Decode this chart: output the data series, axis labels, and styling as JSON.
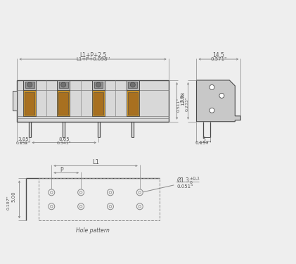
{
  "bg_color": "#eeeeee",
  "line_color": "#4a4a4a",
  "dim_color": "#888888",
  "text_color": "#555555",
  "body_fill": "#d8d8d8",
  "body_fill2": "#c0c0c0",
  "orange_color": "#c8922a",
  "orange_dark": "#a87020",
  "side_fill": "#c8c8c8",
  "top_dim_label1": "L1+P+2.5",
  "top_dim_label2": "L1+P+0.098''",
  "dim_59": "5.9",
  "dim_059": "0.233\"",
  "dim_385": "3.85",
  "dim_0152": "0.152\"",
  "dim_865": "8.65",
  "dim_0341": "0.341\"",
  "side_dim_145": "14.5",
  "side_dim_0571": "0.571\"",
  "side_dim_1298": "12.98",
  "side_dim_0511": "0.511\"",
  "side_dim_5": "5",
  "side_dim_0197": "0.197\"",
  "hole_L1": "L1",
  "hole_P": "P",
  "hole_500": "5.00",
  "hole_0197": "0.197\"",
  "hole_dia": "Ø1.3",
  "hole_tol_plus": "+0.1",
  "hole_tol_zero": "0",
  "hole_inch": "0.051\"",
  "hole_pattern_label": "Hole pattern"
}
